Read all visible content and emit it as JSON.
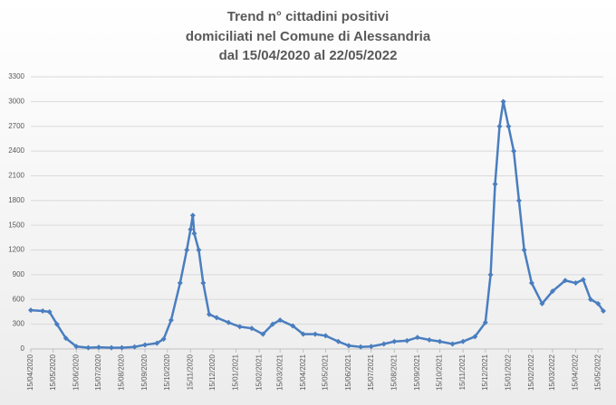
{
  "chart_data": {
    "type": "line",
    "title": [
      "Trend n° cittadini positivi",
      "domiciliati nel Comune di Alessandria",
      "dal 15/04/2020 al 22/05/2022"
    ],
    "x": [
      "15/04/2020",
      "01/05/2020",
      "10/05/2020",
      "20/05/2020",
      "01/06/2020",
      "15/06/2020",
      "01/07/2020",
      "15/07/2020",
      "01/08/2020",
      "15/08/2020",
      "01/09/2020",
      "15/09/2020",
      "01/10/2020",
      "10/10/2020",
      "20/10/2020",
      "01/11/2020",
      "10/11/2020",
      "15/11/2020",
      "18/11/2020",
      "20/11/2020",
      "26/11/2020",
      "02/12/2020",
      "10/12/2020",
      "20/12/2020",
      "05/01/2021",
      "20/01/2021",
      "05/02/2021",
      "20/02/2021",
      "05/03/2021",
      "15/03/2021",
      "01/04/2021",
      "15/04/2021",
      "01/05/2021",
      "15/05/2021",
      "01/06/2021",
      "15/06/2021",
      "01/07/2021",
      "15/07/2021",
      "01/08/2021",
      "15/08/2021",
      "01/09/2021",
      "15/09/2021",
      "01/10/2021",
      "15/10/2021",
      "01/11/2021",
      "15/11/2021",
      "01/12/2021",
      "15/12/2021",
      "22/12/2021",
      "28/12/2021",
      "03/01/2022",
      "08/01/2022",
      "15/01/2022",
      "22/01/2022",
      "29/01/2022",
      "05/02/2022",
      "15/02/2022",
      "01/03/2022",
      "15/03/2022",
      "01/04/2022",
      "15/04/2022",
      "25/04/2022",
      "05/05/2022",
      "15/05/2022",
      "22/05/2022"
    ],
    "series": [
      {
        "name": "positivi",
        "color": "#4a7ebf",
        "values": [
          470,
          460,
          450,
          300,
          130,
          30,
          15,
          20,
          15,
          15,
          25,
          50,
          70,
          120,
          350,
          800,
          1200,
          1450,
          1620,
          1400,
          1200,
          800,
          420,
          380,
          320,
          270,
          250,
          180,
          300,
          350,
          280,
          180,
          180,
          160,
          90,
          40,
          25,
          30,
          60,
          90,
          100,
          140,
          110,
          90,
          60,
          90,
          150,
          320,
          900,
          2000,
          2700,
          3000,
          2700,
          2400,
          1800,
          1200,
          800,
          550,
          700,
          830,
          800,
          840,
          600,
          550,
          460
        ]
      }
    ],
    "xlim": [
      "15/04/2020",
      "22/05/2022"
    ],
    "xticks": [
      "15/04/2020",
      "15/05/2020",
      "15/06/2020",
      "15/07/2020",
      "15/08/2020",
      "15/09/2020",
      "15/10/2020",
      "15/11/2020",
      "15/12/2020",
      "15/01/2021",
      "15/02/2021",
      "15/03/2021",
      "15/04/2021",
      "15/05/2021",
      "15/06/2021",
      "15/07/2021",
      "15/08/2021",
      "15/09/2021",
      "15/10/2021",
      "15/11/2021",
      "15/12/2021",
      "15/01/2022",
      "15/02/2022",
      "15/03/2022",
      "15/04/2022",
      "15/05/2022"
    ],
    "ylim": [
      0,
      3300
    ],
    "yticks": [
      0,
      300,
      600,
      900,
      1200,
      1500,
      1800,
      2100,
      2400,
      2700,
      3000,
      3300
    ],
    "grid": true
  }
}
